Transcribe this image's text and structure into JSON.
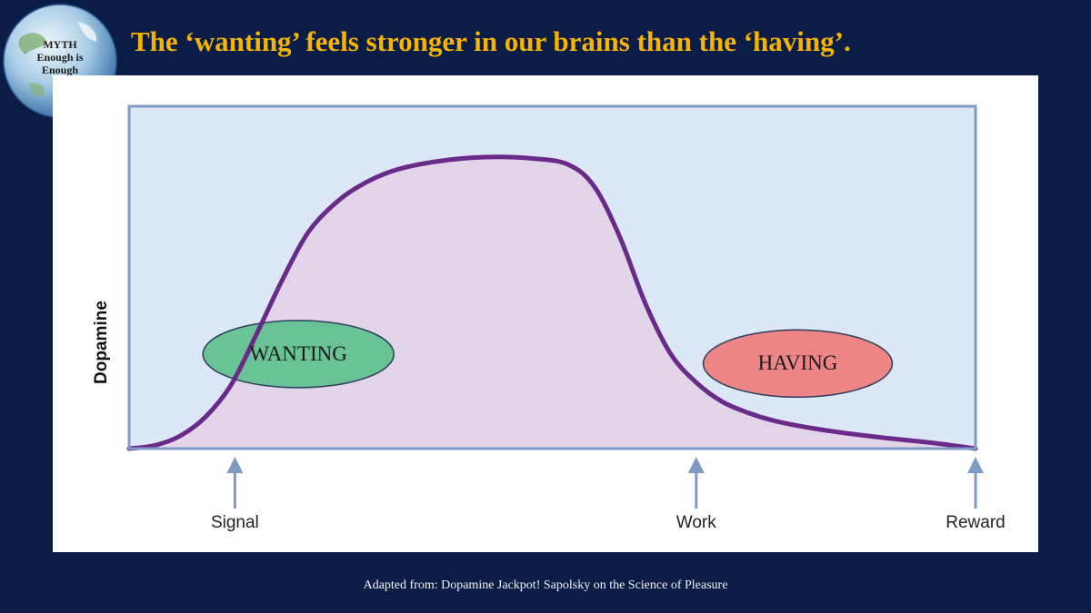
{
  "title": "The ‘wanting’ feels stronger in our brains than the ‘having’.",
  "logo": {
    "icon": "globe-icon",
    "lines": [
      "MYTH",
      "Enough is",
      "Enough"
    ]
  },
  "credit": "Adapted from: Dopamine Jackpot! Sapolsky on the Science of Pleasure",
  "colors": {
    "background": "#0b1d47",
    "title": "#f5b400",
    "plot_bg": "#dce8f6",
    "frame": "#7f9ac4",
    "curve": "#6a2a8a",
    "curve_fill": "#e2d5ea",
    "arrow": "#7f9ac4",
    "wanting_fill": "#5fc08f",
    "having_fill": "#ee7b7b"
  },
  "chart_data": {
    "type": "area",
    "title": "",
    "xlabel": "",
    "ylabel": "Dopamine",
    "xlim": [
      0,
      100
    ],
    "ylim": [
      0,
      100
    ],
    "grid": false,
    "axis_ticks": {
      "show_values": false
    },
    "series": [
      {
        "x": [
          0,
          3,
          6,
          9,
          12,
          15,
          18,
          21,
          24,
          27,
          31,
          36,
          42,
          48,
          52,
          55,
          58,
          61,
          64,
          67,
          70,
          73,
          76,
          80,
          85,
          90,
          95,
          100
        ],
        "y": [
          0,
          1,
          4,
          10,
          20,
          36,
          53,
          68,
          77,
          83,
          88,
          91,
          92.5,
          92,
          90,
          83,
          67,
          46,
          30,
          21,
          15,
          11.5,
          9,
          6.8,
          4.8,
          3.2,
          1.8,
          0
        ]
      }
    ],
    "markers": [
      {
        "label": "Signal",
        "x": 12.5
      },
      {
        "label": "Work",
        "x": 67
      },
      {
        "label": "Reward",
        "x": 100
      }
    ],
    "annotations": [
      {
        "label": "WANTING",
        "x": 20,
        "y": 30
      },
      {
        "label": "HAVING",
        "x": 79,
        "y": 27
      }
    ]
  }
}
